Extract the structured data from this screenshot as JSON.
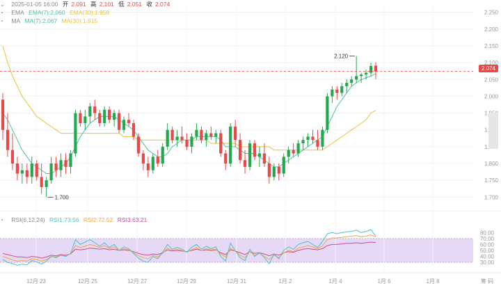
{
  "ohlc_header": {
    "date": "2025-01-05 16:00",
    "open_label": "开",
    "open": "2.091",
    "high_label": "高",
    "high": "2.101",
    "low_label": "低",
    "low": "2.051",
    "close_label": "收",
    "close": "2.074"
  },
  "ema_legend": {
    "name": "EMA",
    "short": "EMA(7):2.060",
    "long": "EMA(30):1.958"
  },
  "ma_legend": {
    "name": "MA",
    "short": "MA(7):2.067",
    "long": "MA(30):1.915"
  },
  "rsi_legend": {
    "name": "RSI(6,12,24)",
    "rsi1": "RSI1:73.56",
    "rsi2": "RSI2:72.52",
    "rsi3": "RSI3:63.21"
  },
  "current_price": "2.074",
  "extremes": {
    "high_label": "2.120",
    "low_label": "1.700"
  },
  "colors": {
    "up": "#25a750",
    "down": "#e84848",
    "ma_short": "#4cc3a0",
    "ma_long": "#e8c23a",
    "rsi1": "#4cc3c3",
    "rsi2": "#f0a64a",
    "rsi3": "#d24a8a",
    "rsi_band": "#e6d9f5"
  },
  "price_axis": [
    "2.250",
    "2.200",
    "2.150",
    "2.100",
    "2.050",
    "2.000",
    "1.950",
    "1.900",
    "1.850",
    "1.800",
    "1.750",
    "1.700"
  ],
  "rsi_axis": [
    "80.00",
    "70.00",
    "60.00",
    "50.00",
    "40.00",
    "30.00"
  ],
  "x_axis": [
    "12月 23",
    "12月 25",
    "12月 27",
    "12月 29",
    "12月 31",
    "1月 2",
    "1月 4",
    "1月 6",
    "1月 8"
  ],
  "corner_label": "筹 码",
  "chart_data": {
    "type": "candlestick",
    "price_range": [
      1.68,
      2.27
    ],
    "candles": [
      [
        1.99,
        2.01,
        1.87,
        1.9
      ],
      [
        1.9,
        1.95,
        1.82,
        1.84
      ],
      [
        1.84,
        1.89,
        1.78,
        1.8
      ],
      [
        1.8,
        1.82,
        1.75,
        1.77
      ],
      [
        1.77,
        1.8,
        1.74,
        1.78
      ],
      [
        1.78,
        1.8,
        1.74,
        1.76
      ],
      [
        1.76,
        1.82,
        1.74,
        1.8
      ],
      [
        1.8,
        1.81,
        1.75,
        1.76
      ],
      [
        1.76,
        1.8,
        1.71,
        1.73
      ],
      [
        1.73,
        1.76,
        1.7,
        1.75
      ],
      [
        1.75,
        1.82,
        1.74,
        1.8
      ],
      [
        1.8,
        1.82,
        1.76,
        1.78
      ],
      [
        1.78,
        1.83,
        1.76,
        1.81
      ],
      [
        1.81,
        1.83,
        1.77,
        1.79
      ],
      [
        1.79,
        1.84,
        1.77,
        1.83
      ],
      [
        1.83,
        1.96,
        1.82,
        1.95
      ],
      [
        1.95,
        1.96,
        1.91,
        1.92
      ],
      [
        1.92,
        1.96,
        1.9,
        1.94
      ],
      [
        1.94,
        1.98,
        1.92,
        1.97
      ],
      [
        1.97,
        1.99,
        1.93,
        1.95
      ],
      [
        1.95,
        1.96,
        1.91,
        1.92
      ],
      [
        1.92,
        1.97,
        1.91,
        1.96
      ],
      [
        1.96,
        1.97,
        1.92,
        1.93
      ],
      [
        1.93,
        1.96,
        1.91,
        1.95
      ],
      [
        1.95,
        1.96,
        1.89,
        1.9
      ],
      [
        1.9,
        1.94,
        1.89,
        1.93
      ],
      [
        1.93,
        1.95,
        1.91,
        1.92
      ],
      [
        1.92,
        1.93,
        1.87,
        1.88
      ],
      [
        1.88,
        1.89,
        1.82,
        1.83
      ],
      [
        1.83,
        1.84,
        1.78,
        1.8
      ],
      [
        1.8,
        1.82,
        1.76,
        1.78
      ],
      [
        1.78,
        1.83,
        1.77,
        1.82
      ],
      [
        1.82,
        1.84,
        1.79,
        1.8
      ],
      [
        1.8,
        1.86,
        1.79,
        1.85
      ],
      [
        1.85,
        1.92,
        1.84,
        1.9
      ],
      [
        1.9,
        1.91,
        1.86,
        1.87
      ],
      [
        1.87,
        1.9,
        1.85,
        1.88
      ],
      [
        1.88,
        1.91,
        1.86,
        1.87
      ],
      [
        1.87,
        1.89,
        1.84,
        1.85
      ],
      [
        1.85,
        1.89,
        1.83,
        1.88
      ],
      [
        1.88,
        1.92,
        1.87,
        1.9
      ],
      [
        1.9,
        1.91,
        1.86,
        1.87
      ],
      [
        1.87,
        1.9,
        1.85,
        1.89
      ],
      [
        1.89,
        1.91,
        1.87,
        1.88
      ],
      [
        1.88,
        1.9,
        1.86,
        1.89
      ],
      [
        1.89,
        1.9,
        1.82,
        1.83
      ],
      [
        1.83,
        1.84,
        1.78,
        1.8
      ],
      [
        1.8,
        1.92,
        1.79,
        1.91
      ],
      [
        1.91,
        1.93,
        1.85,
        1.87
      ],
      [
        1.87,
        1.89,
        1.8,
        1.81
      ],
      [
        1.81,
        1.84,
        1.77,
        1.79
      ],
      [
        1.79,
        1.87,
        1.78,
        1.86
      ],
      [
        1.86,
        1.87,
        1.81,
        1.82
      ],
      [
        1.82,
        1.85,
        1.79,
        1.83
      ],
      [
        1.83,
        1.86,
        1.79,
        1.8
      ],
      [
        1.8,
        1.82,
        1.74,
        1.76
      ],
      [
        1.76,
        1.8,
        1.75,
        1.79
      ],
      [
        1.79,
        1.8,
        1.75,
        1.77
      ],
      [
        1.77,
        1.83,
        1.76,
        1.82
      ],
      [
        1.82,
        1.85,
        1.8,
        1.84
      ],
      [
        1.84,
        1.86,
        1.82,
        1.83
      ],
      [
        1.83,
        1.87,
        1.82,
        1.86
      ],
      [
        1.86,
        1.88,
        1.84,
        1.87
      ],
      [
        1.87,
        1.89,
        1.85,
        1.88
      ],
      [
        1.88,
        1.9,
        1.86,
        1.87
      ],
      [
        1.87,
        1.9,
        1.84,
        1.85
      ],
      [
        1.85,
        1.91,
        1.84,
        1.9
      ],
      [
        1.9,
        2.01,
        1.89,
        2.0
      ],
      [
        2.0,
        2.03,
        1.98,
        2.02
      ],
      [
        2.02,
        2.03,
        1.99,
        2.01
      ],
      [
        2.01,
        2.04,
        2.0,
        2.03
      ],
      [
        2.03,
        2.05,
        2.01,
        2.04
      ],
      [
        2.04,
        2.06,
        2.03,
        2.05
      ],
      [
        2.05,
        2.12,
        2.04,
        2.06
      ],
      [
        2.06,
        2.07,
        2.04,
        2.065
      ],
      [
        2.065,
        2.08,
        2.05,
        2.07
      ],
      [
        2.07,
        2.1,
        2.06,
        2.09
      ],
      [
        2.091,
        2.101,
        2.051,
        2.074
      ]
    ],
    "ma_short": [
      1.95,
      1.93,
      1.9,
      1.87,
      1.84,
      1.82,
      1.8,
      1.79,
      1.78,
      1.77,
      1.77,
      1.78,
      1.79,
      1.8,
      1.82,
      1.85,
      1.88,
      1.9,
      1.92,
      1.93,
      1.94,
      1.94,
      1.94,
      1.94,
      1.93,
      1.92,
      1.91,
      1.9,
      1.88,
      1.86,
      1.84,
      1.83,
      1.82,
      1.82,
      1.83,
      1.85,
      1.86,
      1.87,
      1.87,
      1.87,
      1.88,
      1.88,
      1.88,
      1.88,
      1.88,
      1.87,
      1.85,
      1.85,
      1.85,
      1.84,
      1.83,
      1.83,
      1.83,
      1.82,
      1.81,
      1.8,
      1.79,
      1.79,
      1.8,
      1.81,
      1.82,
      1.83,
      1.84,
      1.85,
      1.86,
      1.87,
      1.88,
      1.91,
      1.94,
      1.97,
      1.99,
      2.01,
      2.03,
      2.04,
      2.05,
      2.055,
      2.06,
      2.067
    ],
    "ma_long": [
      2.15,
      2.1,
      2.06,
      2.03,
      2.0,
      1.98,
      1.96,
      1.94,
      1.93,
      1.92,
      1.91,
      1.9,
      1.89,
      1.89,
      1.89,
      1.89,
      1.89,
      1.89,
      1.89,
      1.89,
      1.89,
      1.89,
      1.89,
      1.89,
      1.89,
      1.88,
      1.88,
      1.88,
      1.87,
      1.87,
      1.87,
      1.87,
      1.87,
      1.87,
      1.87,
      1.87,
      1.87,
      1.87,
      1.87,
      1.87,
      1.87,
      1.87,
      1.87,
      1.86,
      1.86,
      1.86,
      1.86,
      1.86,
      1.86,
      1.85,
      1.85,
      1.85,
      1.85,
      1.85,
      1.85,
      1.85,
      1.84,
      1.84,
      1.84,
      1.84,
      1.84,
      1.84,
      1.84,
      1.84,
      1.84,
      1.84,
      1.84,
      1.85,
      1.86,
      1.87,
      1.88,
      1.89,
      1.9,
      1.91,
      1.92,
      1.93,
      1.95,
      1.958
    ],
    "rsi1": [
      35,
      30,
      28,
      25,
      27,
      26,
      33,
      31,
      27,
      32,
      40,
      38,
      42,
      40,
      45,
      68,
      60,
      64,
      68,
      63,
      57,
      63,
      55,
      60,
      50,
      56,
      53,
      45,
      37,
      32,
      30,
      40,
      36,
      47,
      60,
      52,
      55,
      52,
      47,
      55,
      60,
      52,
      57,
      53,
      56,
      40,
      32,
      62,
      50,
      38,
      33,
      52,
      40,
      46,
      38,
      28,
      44,
      36,
      50,
      56,
      52,
      60,
      63,
      65,
      60,
      55,
      65,
      78,
      80,
      78,
      80,
      81,
      82,
      84,
      80,
      82,
      85,
      74
    ],
    "rsi2": [
      40,
      37,
      34,
      32,
      33,
      32,
      36,
      35,
      32,
      35,
      40,
      39,
      42,
      41,
      44,
      58,
      55,
      57,
      60,
      58,
      55,
      58,
      53,
      56,
      50,
      53,
      51,
      46,
      41,
      38,
      36,
      42,
      39,
      45,
      54,
      50,
      52,
      50,
      47,
      51,
      55,
      50,
      53,
      51,
      52,
      44,
      39,
      54,
      49,
      42,
      38,
      48,
      42,
      45,
      40,
      35,
      42,
      38,
      46,
      50,
      48,
      54,
      56,
      58,
      56,
      53,
      58,
      68,
      71,
      71,
      72,
      73,
      74,
      75,
      73,
      74,
      76,
      72.5
    ],
    "rsi3": [
      45,
      43,
      41,
      39,
      39,
      38,
      40,
      39,
      37,
      39,
      42,
      41,
      43,
      42,
      44,
      52,
      51,
      52,
      54,
      53,
      52,
      53,
      51,
      52,
      50,
      51,
      50,
      48,
      45,
      43,
      42,
      44,
      43,
      46,
      51,
      49,
      50,
      49,
      48,
      50,
      52,
      50,
      51,
      50,
      51,
      46,
      43,
      51,
      49,
      46,
      43,
      48,
      45,
      46,
      44,
      41,
      44,
      42,
      46,
      48,
      47,
      50,
      52,
      53,
      52,
      51,
      53,
      58,
      60,
      60,
      61,
      62,
      62,
      63,
      62,
      63,
      64,
      63.2
    ]
  }
}
